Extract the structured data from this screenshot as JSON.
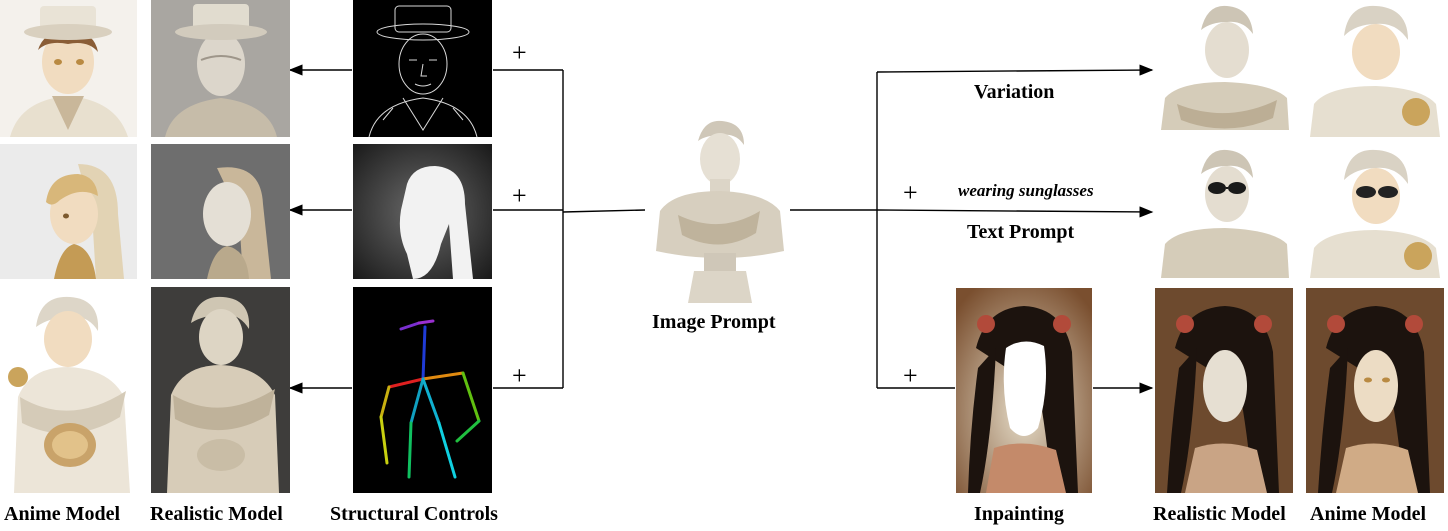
{
  "labels": {
    "anime_model_left": "Anime Model",
    "realistic_model_left": "Realistic Model",
    "structural_controls": "Structural Controls",
    "image_prompt": "Image Prompt",
    "variation": "Variation",
    "text_prompt_text": "wearing sunglasses",
    "text_prompt": "Text Prompt",
    "inpainting": "Inpainting",
    "realistic_model_right": "Realistic Model",
    "anime_model_right": "Anime Model"
  },
  "plus_sign": "+",
  "colors": {
    "marble": "#e9e3d6",
    "marble_shadow": "#b9ae9c",
    "skin_anime": "#f1dcc0",
    "hair_gold": "#d8b77a",
    "control_bg": "#000000",
    "sky_grey": "#9b9b9b",
    "inpaint_bg": "#7a4f2f"
  },
  "icons": [
    "arrow-icon",
    "pose-skeleton-icon",
    "sunglasses-icon",
    "edge-map-icon",
    "depth-map-icon",
    "mask-icon"
  ]
}
